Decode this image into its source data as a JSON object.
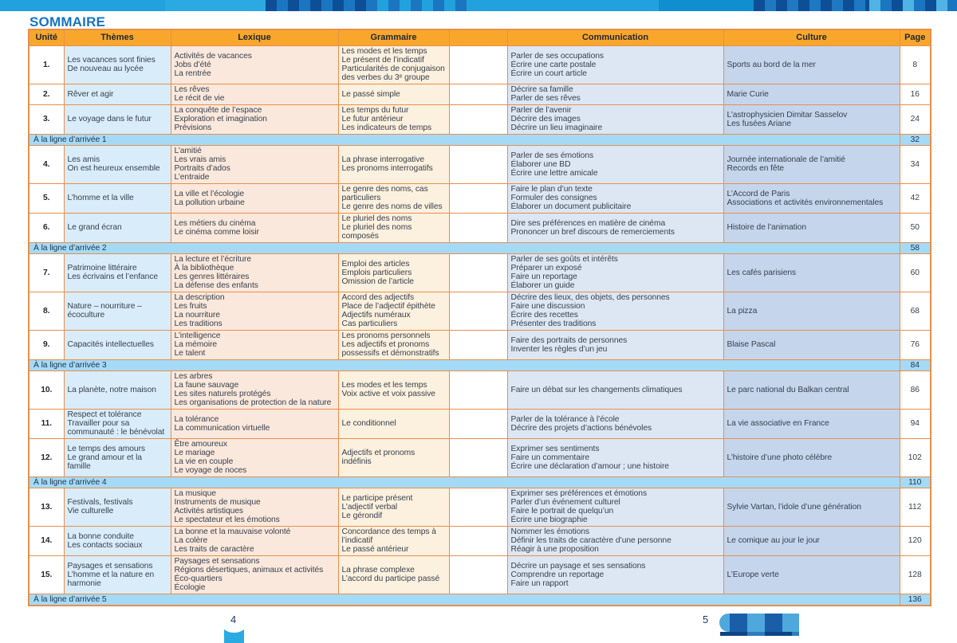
{
  "page": {
    "heading": "SOMMAIRE",
    "footer": {
      "left_page_number": "4",
      "right_page_number": "5",
      "left_decoration": "bookmark-icon",
      "right_decoration": "checkered-ribbon-icon"
    }
  },
  "colors": {
    "topbar_blue": "#21A1DD",
    "checker_dark_navy": "#0D4F97",
    "checker_medium_blue": "#1B76C1",
    "heading_blue": "#1474C0",
    "header_orange": "#F8A72C",
    "border_orange": "#E78F4C",
    "themes_blue": "#D9ECF9",
    "lexique_peach": "#FAE8DC",
    "grammaire_cream": "#FCF0DE",
    "communication_blue": "#DDE6F3",
    "culture_blue": "#C5D5EC",
    "milestone_banner_blue": "#A5DAF7",
    "body_text": "#39424E",
    "footer_ribbon_light": "#4FA8DC",
    "footer_ribbon_dark": "#1A5EA9",
    "bookmark_cyan": "#29ABE2"
  },
  "table": {
    "columns": [
      "Unité",
      "Thèmes",
      "Lexique",
      "Grammaire",
      "",
      "Communication",
      "Culture",
      "Page"
    ],
    "rows": [
      {
        "type": "unit",
        "number": "1.",
        "themes": [
          "Les vacances sont finies",
          "De nouveau au lycée"
        ],
        "lexique": [
          "Activités de vacances",
          "Jobs d’été",
          "La rentrée"
        ],
        "grammaire": [
          "Les modes et les temps",
          "Le présent de l’indicatif",
          "Particularités de conjugaison des verbes du 3ᵉ groupe"
        ],
        "communication": [
          "Parler de ses occupations",
          "Écrire une carte postale",
          "Écrire un court article"
        ],
        "culture": [
          "Sports au bord de la mer"
        ],
        "page": "8"
      },
      {
        "type": "unit",
        "number": "2.",
        "themes": [
          "Rêver et agir"
        ],
        "lexique": [
          "Les rêves",
          "Le récit de vie"
        ],
        "grammaire": [
          "Le passé simple"
        ],
        "communication": [
          "Décrire sa famille",
          "Parler de ses rêves"
        ],
        "culture": [
          "Marie Curie"
        ],
        "page": "16"
      },
      {
        "type": "unit",
        "number": "3.",
        "themes": [
          "Le voyage dans le futur"
        ],
        "lexique": [
          "La conquête de l’espace",
          "Exploration et imagination",
          "Prévisions"
        ],
        "grammaire": [
          "Les temps du futur",
          "Le futur antérieur",
          "Les indicateurs de temps"
        ],
        "communication": [
          "Parler de l’avenir",
          "Décrire des images",
          "Décrire un lieu imaginaire"
        ],
        "culture": [
          "L’astrophysicien Dimitar Sasselov",
          "Les fusées Ariane"
        ],
        "page": "24"
      },
      {
        "type": "milestone",
        "label": "À la ligne d’arrivée 1",
        "page": "32"
      },
      {
        "type": "unit",
        "number": "4.",
        "themes": [
          "Les amis",
          "On est heureux ensemble"
        ],
        "lexique": [
          "L’amitié",
          "Les vrais amis",
          "Portraits d’ados",
          "L’entraide"
        ],
        "grammaire": [
          "La phrase interrogative",
          "Les pronoms interrogatifs"
        ],
        "communication": [
          "Parler de ses émotions",
          "Élaborer une BD",
          "Écrire une lettre amicale"
        ],
        "culture": [
          "Journée internationale de l’amitié",
          "Records en fête"
        ],
        "page": "34"
      },
      {
        "type": "unit",
        "number": "5.",
        "themes": [
          "L’homme et la ville"
        ],
        "lexique": [
          "La ville et l’écologie",
          "La pollution urbaine"
        ],
        "grammaire": [
          "Le genre des noms, cas particuliers",
          "Le genre des noms de villes"
        ],
        "communication": [
          "Faire le plan d’un texte",
          "Formuler des consignes",
          "Élaborer un document publicitaire"
        ],
        "culture": [
          "L’Accord de Paris",
          "Associations et activités environnementales"
        ],
        "page": "42"
      },
      {
        "type": "unit",
        "number": "6.",
        "themes": [
          "Le grand écran"
        ],
        "lexique": [
          "Les métiers du cinéma",
          "Le cinéma comme loisir"
        ],
        "grammaire": [
          "Le pluriel des noms",
          "Le pluriel des noms composés"
        ],
        "communication": [
          "Dire ses préférences en matière de cinéma",
          "Prononcer un bref discours de remerciements"
        ],
        "culture": [
          "Histoire de l’animation"
        ],
        "page": "50"
      },
      {
        "type": "milestone",
        "label": "À la ligne d’arrivée 2",
        "page": "58"
      },
      {
        "type": "unit",
        "number": "7.",
        "themes": [
          "Patrimoine littéraire",
          "Les écrivains et l’enfance"
        ],
        "lexique": [
          "La lecture et l’écriture",
          "À la bibliothèque",
          "Les genres littéraires",
          "La défense des enfants"
        ],
        "grammaire": [
          "Emploi des articles",
          "Emplois particuliers",
          "Omission de l’article"
        ],
        "communication": [
          "Parler de ses goûts et intérêts",
          "Préparer un exposé",
          "Faire un reportage",
          "Élaborer un guide"
        ],
        "culture": [
          "Les cafés parisiens"
        ],
        "page": "60"
      },
      {
        "type": "unit",
        "number": "8.",
        "themes": [
          "Nature – nourriture – écoculture"
        ],
        "lexique": [
          "La description",
          "Les fruits",
          "La nourriture",
          "Les traditions"
        ],
        "grammaire": [
          "Accord des adjectifs",
          "Place de l’adjectif épithète",
          "Adjectifs numéraux",
          "Cas particuliers"
        ],
        "communication": [
          "Décrire des lieux, des objets, des personnes",
          "Faire une discussion",
          "Écrire des recettes",
          "Présenter des traditions"
        ],
        "culture": [
          "La pizza"
        ],
        "page": "68"
      },
      {
        "type": "unit",
        "number": "9.",
        "themes": [
          "Capacités intellectuelles"
        ],
        "lexique": [
          "L’intelligence",
          "La mémoire",
          "Le talent"
        ],
        "grammaire": [
          "Les pronoms personnels",
          "Les adjectifs et pronoms possessifs et démonstratifs"
        ],
        "communication": [
          "Faire des portraits de personnes",
          "Inventer les règles d’un jeu"
        ],
        "culture": [
          "Blaise Pascal"
        ],
        "page": "76"
      },
      {
        "type": "milestone",
        "label": "À la ligne d’arrivée 3",
        "page": "84"
      },
      {
        "type": "unit",
        "number": "10.",
        "themes": [
          "La planète, notre maison"
        ],
        "lexique": [
          "Les arbres",
          "La faune sauvage",
          "Les sites naturels protégés",
          "Les organisations de protection de la nature"
        ],
        "grammaire": [
          "Les modes et les temps",
          "Voix active et voix passive"
        ],
        "communication": [
          "Faire un débat sur les changements climatiques"
        ],
        "culture": [
          "Le parc national du Balkan central"
        ],
        "page": "86"
      },
      {
        "type": "unit",
        "number": "11.",
        "themes": [
          "Respect et tolérance",
          "Travailler pour sa communauté : le bénévolat"
        ],
        "lexique": [
          "La tolérance",
          "La communication virtuelle"
        ],
        "grammaire": [
          "Le conditionnel"
        ],
        "communication": [
          "Parler de la tolérance à l’école",
          "Décrire des projets d’actions bénévoles"
        ],
        "culture": [
          "La vie associative en France"
        ],
        "page": "94"
      },
      {
        "type": "unit",
        "number": "12.",
        "themes": [
          "Le temps des amours",
          "Le grand amour et la famille"
        ],
        "lexique": [
          "Être amoureux",
          "Le mariage",
          "La vie en couple",
          "Le voyage de noces"
        ],
        "grammaire": [
          "Adjectifs et pronoms indéfinis"
        ],
        "communication": [
          "Exprimer ses sentiments",
          "Faire un commentaire",
          "Écrire une déclaration d’amour ; une histoire"
        ],
        "culture": [
          "L’histoire d’une photo célèbre"
        ],
        "page": "102"
      },
      {
        "type": "milestone",
        "label": "À la ligne d’arrivée 4",
        "page": "110"
      },
      {
        "type": "unit",
        "number": "13.",
        "themes": [
          "Festivals, festivals",
          "Vie culturelle"
        ],
        "lexique": [
          "La musique",
          "Instruments de musique",
          "Activités artistiques",
          "Le spectateur et les émotions"
        ],
        "grammaire": [
          "Le participe présent",
          "L’adjectif verbal",
          "Le gérondif"
        ],
        "communication": [
          "Exprimer ses préférences et émotions",
          "Parler d’un événement culturel",
          "Faire le portrait de quelqu’un",
          "Écrire une biographie"
        ],
        "culture": [
          "Sylvie Vartan, l’idole d’une génération"
        ],
        "page": "112"
      },
      {
        "type": "unit",
        "number": "14.",
        "themes": [
          "La bonne conduite",
          "Les contacts sociaux"
        ],
        "lexique": [
          "La bonne et la mauvaise volonté",
          "La colère",
          "Les traits de caractère"
        ],
        "grammaire": [
          "Concordance des temps à l’indicatif",
          "Le passé antérieur"
        ],
        "communication": [
          "Nommer les émotions",
          "Définir les traits de caractère d’une personne",
          "Réagir à une proposition"
        ],
        "culture": [
          "Le comique au jour le jour"
        ],
        "page": "120"
      },
      {
        "type": "unit",
        "number": "15.",
        "themes": [
          "Paysages et sensations",
          "L’homme et la nature en harmonie"
        ],
        "lexique": [
          "Paysages et sensations",
          "Régions désertiques, animaux et activités",
          "Éco-quartiers",
          "Écologie"
        ],
        "grammaire": [
          "La phrase complexe",
          "L’accord du participe passé"
        ],
        "communication": [
          "Décrire un paysage et ses sensations",
          "Comprendre un reportage",
          "Faire un rapport"
        ],
        "culture": [
          "L’Europe verte"
        ],
        "page": "128"
      },
      {
        "type": "milestone",
        "label": "À la ligne d’arrivée 5",
        "page": "136"
      }
    ]
  }
}
